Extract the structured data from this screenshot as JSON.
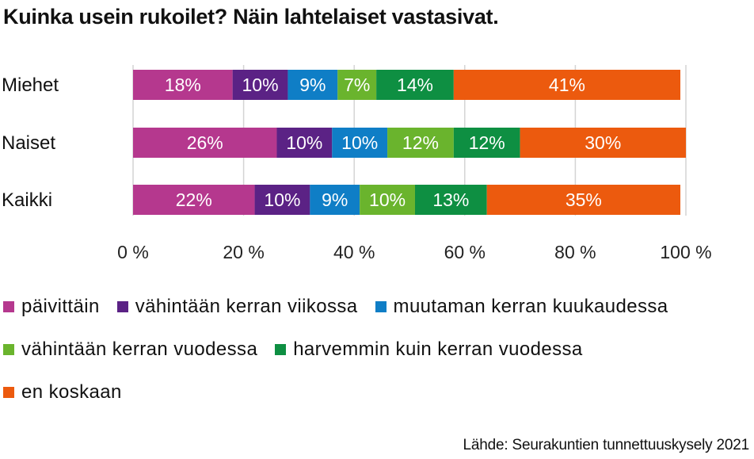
{
  "title": "Kuinka usein rukoilet? Näin lahtelaiset vastasivat.",
  "source": "Lähde: Seurakuntien tunnettuuskysely 2021",
  "chart_data": {
    "type": "bar",
    "orientation": "horizontal",
    "stacked": true,
    "title": "Kuinka usein rukoilet? Näin lahtelaiset vastasivat.",
    "categories": [
      "Miehet",
      "Naiset",
      "Kaikki"
    ],
    "x_ticks": [
      "0 %",
      "20 %",
      "40 %",
      "60 %",
      "80 %",
      "100 %"
    ],
    "xlim": [
      0,
      100
    ],
    "grid": true,
    "legend_position": "bottom",
    "series": [
      {
        "name": "päivittäin",
        "color": "#b5388e",
        "values": [
          18,
          26,
          22
        ]
      },
      {
        "name": "vähintään kerran viikossa",
        "color": "#5b2285",
        "values": [
          10,
          10,
          10
        ]
      },
      {
        "name": "muutaman kerran kuukaudessa",
        "color": "#0f7ec6",
        "values": [
          9,
          10,
          9
        ]
      },
      {
        "name": "vähintään kerran vuodessa",
        "color": "#6ab42d",
        "values": [
          7,
          12,
          10
        ]
      },
      {
        "name": "harvemmin kuin kerran vuodessa",
        "color": "#0e8f42",
        "values": [
          14,
          12,
          13
        ]
      },
      {
        "name": "en koskaan",
        "color": "#ec5a0e",
        "values": [
          41,
          30,
          35
        ]
      }
    ],
    "data_labels": [
      [
        "18%",
        "10%",
        "9%",
        "7%",
        "14%",
        "41%"
      ],
      [
        "26%",
        "10%",
        "10%",
        "12%",
        "12%",
        "30%"
      ],
      [
        "22%",
        "10%",
        "9%",
        "10%",
        "13%",
        "35%"
      ]
    ]
  },
  "legend": {
    "rows": [
      [
        0,
        1,
        2
      ],
      [
        3,
        4
      ],
      [
        5
      ]
    ]
  }
}
